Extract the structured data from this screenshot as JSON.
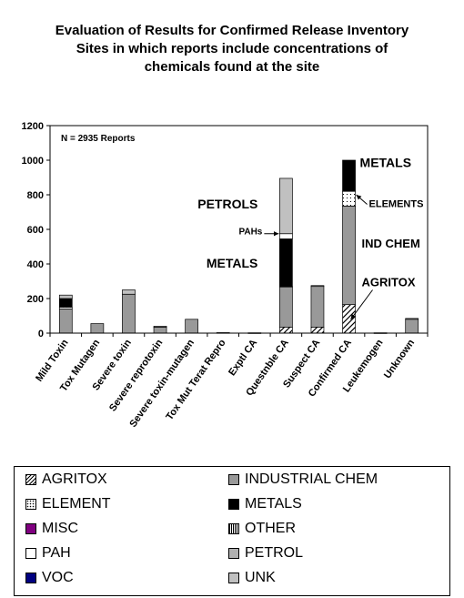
{
  "title_lines": [
    "Evaluation of Results for Confirmed Release Inventory",
    "Sites in which reports include concentrations of",
    "chemicals found at the site"
  ],
  "chart_data": {
    "type": "bar",
    "stacked": true,
    "ylim": [
      0,
      1200
    ],
    "yticks": [
      0,
      200,
      400,
      600,
      800,
      1000,
      1200
    ],
    "grid": false,
    "categories": [
      "Mild Toxin",
      "Tox Mutagen",
      "Severe toxin",
      "Severe reprotoxin",
      "Severe toxin-mutagen",
      "Tox Mut Terat Repro",
      "Exptl CA",
      "Questnble CA",
      "Suspect CA",
      "Confirmed CA",
      "Leukemogen",
      "Unknown"
    ],
    "series": [
      {
        "name": "AGRITOX",
        "fill": "hatch",
        "values": [
          0,
          0,
          0,
          0,
          0,
          0,
          0,
          35,
          35,
          165,
          0,
          0
        ]
      },
      {
        "name": "INDUSTRIAL CHEM",
        "fill": "#999999",
        "values": [
          140,
          55,
          225,
          35,
          80,
          0,
          0,
          230,
          235,
          570,
          0,
          80
        ]
      },
      {
        "name": "ELEMENT",
        "fill": "dots",
        "values": [
          10,
          0,
          0,
          0,
          0,
          0,
          0,
          5,
          0,
          85,
          0,
          0
        ]
      },
      {
        "name": "METALS",
        "fill": "#000000",
        "values": [
          50,
          0,
          0,
          0,
          0,
          0,
          0,
          275,
          0,
          180,
          0,
          0
        ]
      },
      {
        "name": "MISC",
        "fill": "#800080",
        "values": [
          0,
          0,
          0,
          0,
          0,
          0,
          0,
          0,
          0,
          0,
          0,
          0
        ]
      },
      {
        "name": "OTHER",
        "fill": "vlines",
        "values": [
          0,
          0,
          0,
          0,
          0,
          0,
          0,
          0,
          0,
          0,
          0,
          0
        ]
      },
      {
        "name": "PAH",
        "fill": "#ffffff",
        "values": [
          0,
          0,
          0,
          0,
          0,
          0,
          0,
          30,
          0,
          0,
          0,
          0
        ]
      },
      {
        "name": "PETROL",
        "fill": "#b0b0b0",
        "values": [
          0,
          0,
          0,
          0,
          0,
          0,
          0,
          0,
          0,
          0,
          0,
          0
        ]
      },
      {
        "name": "VOC",
        "fill": "#000080",
        "values": [
          0,
          0,
          0,
          0,
          0,
          0,
          0,
          0,
          0,
          0,
          0,
          0
        ]
      },
      {
        "name": "UNK",
        "fill": "#c0c0c0",
        "values": [
          20,
          0,
          25,
          5,
          0,
          3,
          2,
          320,
          5,
          0,
          2,
          5
        ]
      }
    ],
    "annotations": {
      "n_reports": "N = 2935 Reports",
      "petrols": "PETROLS",
      "pahs": "PAHs",
      "metals_q": "METALS",
      "metals_c": "METALS",
      "elements": "ELEMENTS",
      "ind_chem": "IND CHEM",
      "agritox": "AGRITOX"
    }
  },
  "legend": [
    [
      "AGRITOX",
      "INDUSTRIAL CHEM"
    ],
    [
      "ELEMENT",
      "METALS"
    ],
    [
      "MISC",
      "OTHER"
    ],
    [
      "PAH",
      "PETROL"
    ],
    [
      "VOC",
      "UNK"
    ]
  ]
}
